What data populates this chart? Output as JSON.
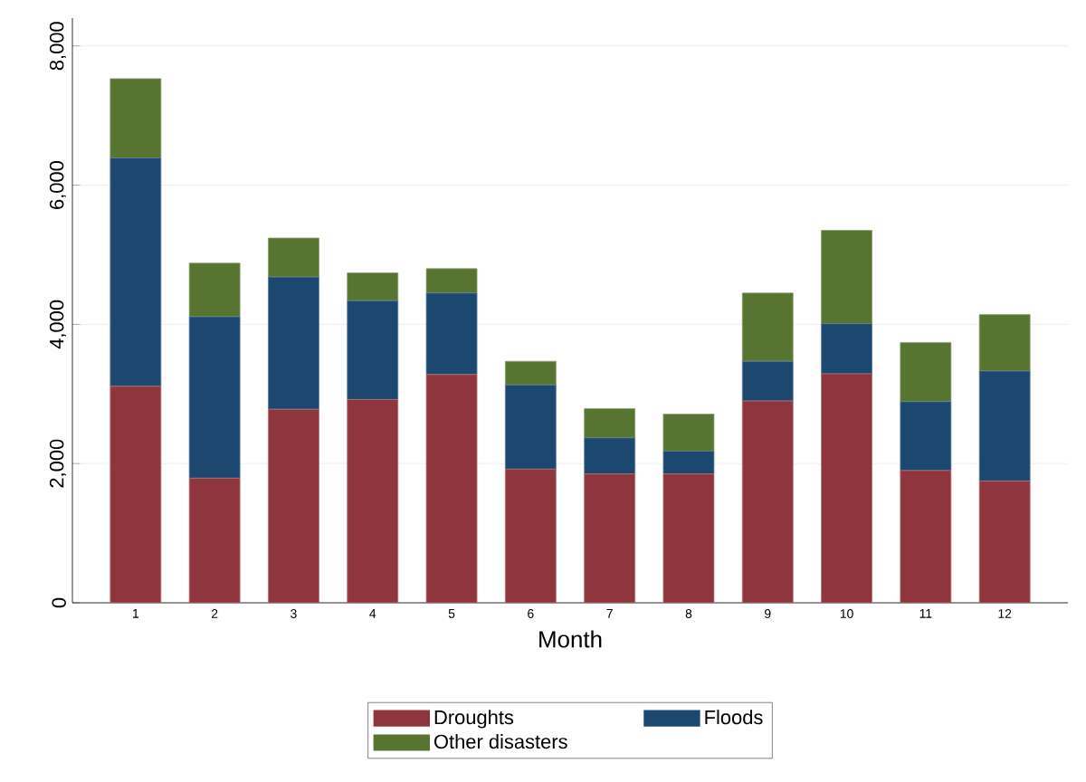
{
  "chart_data": {
    "type": "bar",
    "stacked": true,
    "xlabel": "Month",
    "categories": [
      "1",
      "2",
      "3",
      "4",
      "5",
      "6",
      "7",
      "8",
      "9",
      "10",
      "11",
      "12"
    ],
    "series": [
      {
        "name": "Droughts",
        "color": "#8f353d",
        "values": [
          3110,
          1790,
          2780,
          2920,
          3280,
          1920,
          1850,
          1850,
          2900,
          3290,
          1900,
          1750
        ]
      },
      {
        "name": "Floods",
        "color": "#1c4870",
        "values": [
          3280,
          2320,
          1900,
          1420,
          1170,
          1210,
          520,
          330,
          570,
          720,
          990,
          1580
        ]
      },
      {
        "name": "Other disasters",
        "color": "#577530",
        "values": [
          1140,
          770,
          560,
          400,
          350,
          340,
          420,
          530,
          980,
          1340,
          850,
          810
        ]
      }
    ],
    "ylim": [
      0,
      8400
    ],
    "yticks": [
      {
        "value": 0,
        "label": "0"
      },
      {
        "value": 2000,
        "label": "2,000"
      },
      {
        "value": 4000,
        "label": "4,000"
      },
      {
        "value": 6000,
        "label": "6,000"
      },
      {
        "value": 8000,
        "label": "8,000"
      }
    ],
    "grid": "y",
    "legend": "bottom"
  }
}
